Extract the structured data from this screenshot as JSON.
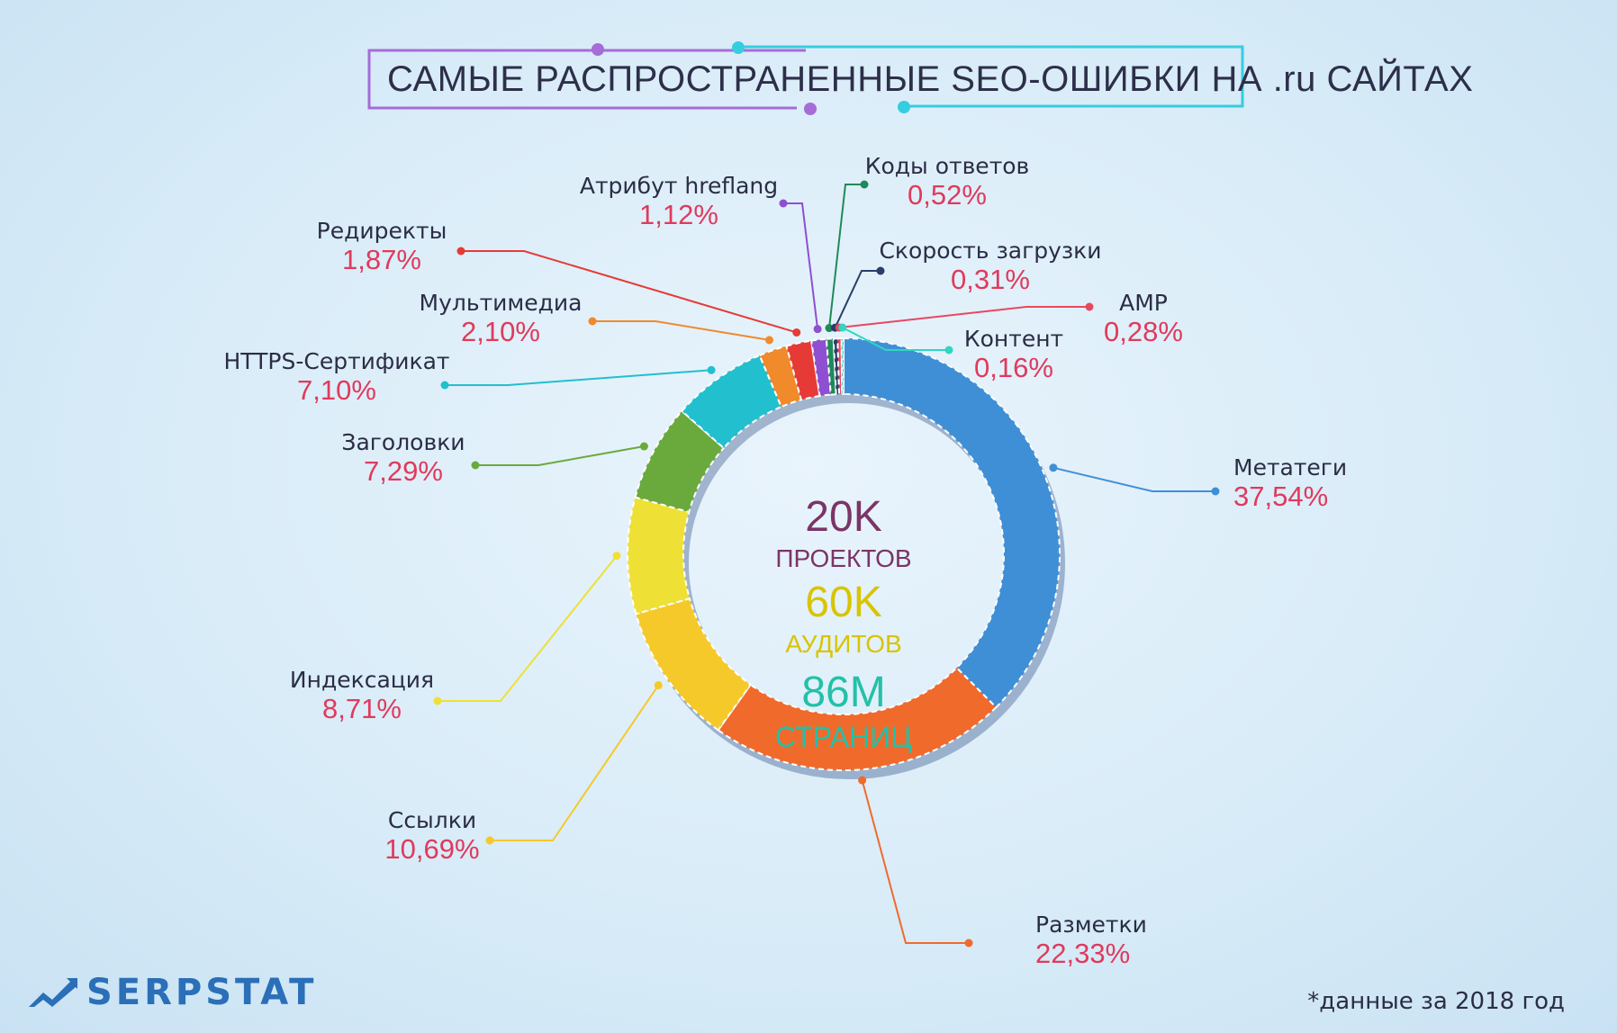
{
  "title": "САМЫЕ РАСПРОСТРАНЕННЫЕ SEO-ОШИБКИ НА .ru САЙТАХ",
  "footnote": "*данные за 2018 год",
  "logo": "SERPSTAT",
  "center": {
    "projects_value": "20K",
    "projects_label": "ПРОЕКТОВ",
    "audits_value": "60K",
    "audits_label": "АУДИТОВ",
    "pages_value": "86M",
    "pages_label": "СТРАНИЦ"
  },
  "colors": {
    "title_left_frame": "#a66cd8",
    "title_right_frame": "#35cde0",
    "percent_text": "#e03a5c",
    "label_text": "#2b2d45",
    "projects": "#7a3566",
    "audits": "#d9c400",
    "pages": "#23c1a8"
  },
  "chart_data": {
    "type": "pie",
    "title": "САМЫЕ РАСПРОСТРАНЕННЫЕ SEO-ОШИБКИ НА .ru САЙТАХ",
    "donut": true,
    "legend": "none",
    "categories": [
      "Метатеги",
      "Разметки",
      "Ссылки",
      "Индексация",
      "Заголовки",
      "HTTPS-Сертификат",
      "Мультимедиа",
      "Редиректы",
      "Атрибут hreflang",
      "Коды ответов",
      "Скорость загрузки",
      "AMP",
      "Контент"
    ],
    "values": [
      37.54,
      22.33,
      10.69,
      8.71,
      7.29,
      7.1,
      2.1,
      1.87,
      1.12,
      0.52,
      0.31,
      0.28,
      0.16
    ],
    "value_labels": [
      "37,54%",
      "22,33%",
      "10,69%",
      "8,71%",
      "7,29%",
      "7,10%",
      "2,10%",
      "1,87%",
      "1,12%",
      "0,52%",
      "0,31%",
      "0,28%",
      "0,16%"
    ],
    "colors": [
      "#3f8fd6",
      "#f06a2c",
      "#f5c92a",
      "#efe036",
      "#6aaa3c",
      "#22bfcf",
      "#f08a2a",
      "#e63a36",
      "#8e4fd0",
      "#1e8a5a",
      "#2a3d6a",
      "#e8485e",
      "#2fd6c0"
    ]
  }
}
